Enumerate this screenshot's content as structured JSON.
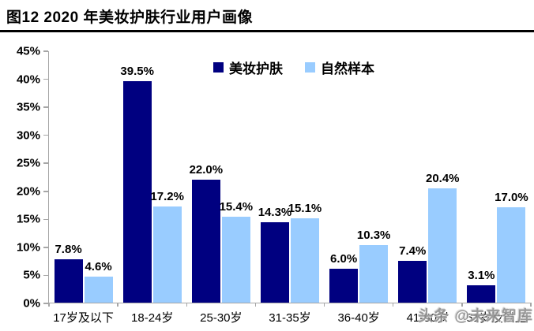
{
  "title": "图12  2020 年美妆护肤行业用户画像",
  "watermark": "头条 @未来智库",
  "colors": {
    "series_makeup": "#000080",
    "series_natural": "#99CCFF",
    "axis": "#A6A6A6",
    "title_rule": "#000000",
    "watermark_gray": "#8F8F8F"
  },
  "legend": {
    "position": "top-center",
    "items": [
      {
        "label": "美妆护肤",
        "color": "#000080"
      },
      {
        "label": "自然样本",
        "color": "#99CCFF"
      }
    ]
  },
  "chart_data": {
    "type": "bar",
    "title": "图12  2020 年美妆护肤行业用户画像",
    "categories": [
      "17岁及以下",
      "18-24岁",
      "25-30岁",
      "31-35岁",
      "36-40岁",
      "41-50岁",
      "51岁及以上"
    ],
    "series": [
      {
        "name": "美妆护肤",
        "color": "#000080",
        "values": [
          7.8,
          39.5,
          22.0,
          14.3,
          6.0,
          7.4,
          3.1
        ],
        "labels": [
          "7.8%",
          "39.5%",
          "22.0%",
          "14.3%",
          "6.0%",
          "7.4%",
          "3.1%"
        ]
      },
      {
        "name": "自然样本",
        "color": "#99CCFF",
        "values": [
          4.6,
          17.2,
          15.4,
          15.1,
          10.3,
          20.4,
          17.0
        ],
        "labels": [
          "4.6%",
          "17.2%",
          "15.4%",
          "15.1%",
          "10.3%",
          "20.4%",
          "17.0%"
        ]
      }
    ],
    "xlabel": "",
    "ylabel": "",
    "ylim": [
      0,
      45
    ],
    "ytick_step": 5,
    "yticks": [
      "45%",
      "40%",
      "35%",
      "30%",
      "25%",
      "20%",
      "15%",
      "10%",
      "5%",
      "0%"
    ],
    "value_suffix": "%",
    "grid": false,
    "legend_position": "top-center"
  }
}
